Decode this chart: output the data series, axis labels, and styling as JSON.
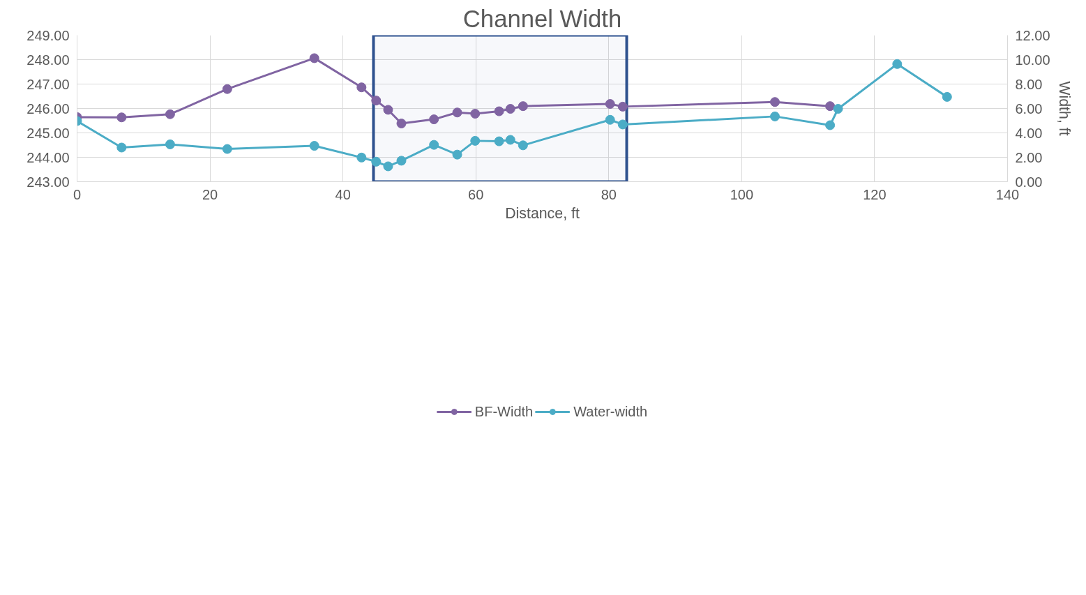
{
  "chart_data": {
    "type": "line",
    "title": "Channel Width",
    "xlabel": "Distance, ft",
    "y2label": "Width, ft",
    "x": [
      0,
      6.7,
      14.0,
      22.6,
      35.7,
      42.8,
      45.0,
      46.8,
      48.8,
      53.7,
      57.2,
      59.9,
      63.5,
      65.2,
      67.1,
      80.2,
      82.1,
      105.0,
      113.3,
      114.5,
      123.4,
      130.9
    ],
    "series": [
      {
        "name": "BF-Width",
        "color": "#8064a2",
        "axis": "y2",
        "values": [
          5.29,
          5.27,
          5.53,
          7.59,
          10.12,
          7.73,
          6.65,
          5.89,
          4.77,
          5.11,
          5.67,
          5.57,
          5.77,
          5.97,
          6.19,
          6.37,
          6.15,
          6.53,
          6.19,
          null,
          null,
          null
        ]
      },
      {
        "name": "Water-width",
        "color": "#4bacc6",
        "axis": "y2",
        "values": [
          4.97,
          2.8,
          3.06,
          2.68,
          2.94,
          1.98,
          1.64,
          1.26,
          1.72,
          3.02,
          2.22,
          3.35,
          3.31,
          3.43,
          2.98,
          5.07,
          4.69,
          5.35,
          4.63,
          5.97,
          9.64,
          6.95
        ]
      }
    ],
    "xlim": [
      0,
      140
    ],
    "xticks": [
      0,
      20,
      40,
      60,
      80,
      100,
      120,
      140
    ],
    "ylim": [
      243,
      249
    ],
    "yticks": [
      {
        "value": 243,
        "label": "243.00"
      },
      {
        "value": 244,
        "label": "244.00"
      },
      {
        "value": 245,
        "label": "245.00"
      },
      {
        "value": 246,
        "label": "246.00"
      },
      {
        "value": 247,
        "label": "247.00"
      },
      {
        "value": 248,
        "label": "248.00"
      },
      {
        "value": 249,
        "label": "249.00"
      }
    ],
    "y2lim": [
      0,
      12
    ],
    "y2ticks": [
      {
        "value": 0,
        "label": "0.00"
      },
      {
        "value": 2,
        "label": "2.00"
      },
      {
        "value": 4,
        "label": "4.00"
      },
      {
        "value": 6,
        "label": "6.00"
      },
      {
        "value": 8,
        "label": "8.00"
      },
      {
        "value": 10,
        "label": "10.00"
      },
      {
        "value": 12,
        "label": "12.00"
      }
    ],
    "bands": [
      {
        "axis": "x",
        "from": 44.6,
        "to": 82.7,
        "color": "#2f528f"
      }
    ],
    "grid": true,
    "legend": "bottom",
    "marker": "circle",
    "line_style": "solid"
  }
}
